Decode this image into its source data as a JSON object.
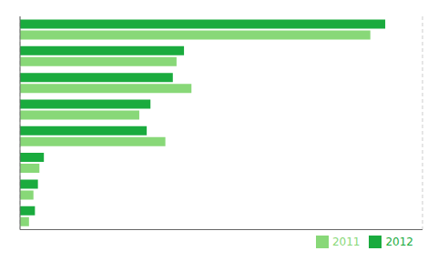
{
  "chart_data": {
    "type": "bar",
    "orientation": "horizontal",
    "categories": [
      null,
      null,
      null,
      null,
      null,
      null,
      null,
      null
    ],
    "series": [
      {
        "name": "2012",
        "color": "#1aab3e",
        "values": [
          490,
          220,
          205,
          175,
          170,
          32,
          24,
          20
        ]
      },
      {
        "name": "2011",
        "color": "#88d878",
        "values": [
          470,
          210,
          230,
          160,
          195,
          26,
          18,
          12
        ]
      }
    ],
    "xlim": [
      0,
      540
    ],
    "xticks": [
      100,
      200,
      300,
      400,
      500
    ],
    "grid": true,
    "legend": "lower right",
    "tick_labels": false
  }
}
